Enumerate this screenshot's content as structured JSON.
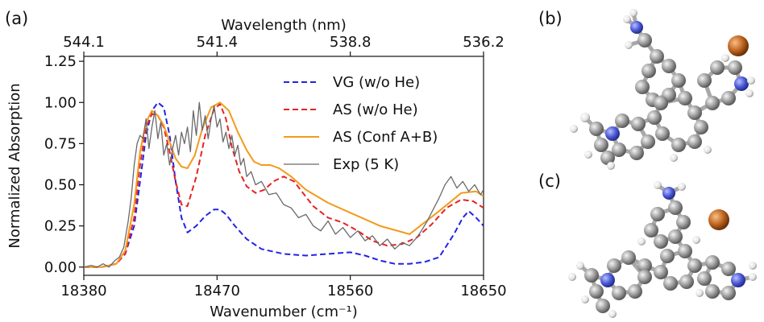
{
  "panels": {
    "a": "(a)",
    "b": "(b)",
    "c": "(c)"
  },
  "chart_data": {
    "type": "line",
    "xlabel": "Wavenumber (cm⁻¹)",
    "ylabel": "Normalized Absorption",
    "top_xlabel": "Wavelength (nm)",
    "xlim": [
      18380,
      18650
    ],
    "ylim": [
      -0.05,
      1.28
    ],
    "xticks": [
      18380,
      18470,
      18560,
      18650
    ],
    "xtick_labels": [
      "18380",
      "18470",
      "18560",
      "18650"
    ],
    "yticks": [
      0.0,
      0.25,
      0.5,
      0.75,
      1.0,
      1.25
    ],
    "ytick_labels": [
      "0.00",
      "0.25",
      "0.50",
      "0.75",
      "1.00",
      "1.25"
    ],
    "top_xticks": [
      18380,
      18470,
      18560,
      18650
    ],
    "top_xtick_labels": [
      "544.1",
      "541.4",
      "538.8",
      "536.2"
    ],
    "legend_position": "top-right",
    "grid": false,
    "series": [
      {
        "name": "VG (w/o He)",
        "color": "#2323e6",
        "dash": "dashed",
        "x": [
          18380,
          18392,
          18402,
          18408,
          18414,
          18418,
          18422,
          18426,
          18430,
          18434,
          18438,
          18442,
          18446,
          18450,
          18456,
          18462,
          18468,
          18472,
          18476,
          18482,
          18490,
          18500,
          18515,
          18530,
          18545,
          18560,
          18570,
          18580,
          18590,
          18600,
          18610,
          18620,
          18630,
          18636,
          18640,
          18645,
          18650
        ],
        "y": [
          0.0,
          0.0,
          0.02,
          0.08,
          0.25,
          0.52,
          0.8,
          0.95,
          1.0,
          0.97,
          0.8,
          0.52,
          0.3,
          0.21,
          0.25,
          0.31,
          0.35,
          0.35,
          0.32,
          0.25,
          0.17,
          0.11,
          0.08,
          0.07,
          0.08,
          0.09,
          0.07,
          0.04,
          0.02,
          0.02,
          0.03,
          0.06,
          0.2,
          0.3,
          0.34,
          0.3,
          0.25
        ]
      },
      {
        "name": "AS (w/o He)",
        "color": "#e62323",
        "dash": "dashed",
        "x": [
          18380,
          18392,
          18402,
          18408,
          18414,
          18418,
          18422,
          18426,
          18430,
          18434,
          18438,
          18442,
          18446,
          18450,
          18456,
          18462,
          18468,
          18472,
          18476,
          18480,
          18485,
          18490,
          18496,
          18502,
          18508,
          18515,
          18522,
          18528,
          18535,
          18545,
          18555,
          18565,
          18575,
          18585,
          18595,
          18605,
          18615,
          18625,
          18635,
          18643,
          18650
        ],
        "y": [
          0.0,
          0.0,
          0.02,
          0.08,
          0.3,
          0.62,
          0.85,
          0.93,
          0.92,
          0.85,
          0.7,
          0.52,
          0.38,
          0.37,
          0.55,
          0.8,
          0.96,
          0.99,
          0.9,
          0.73,
          0.58,
          0.49,
          0.45,
          0.47,
          0.52,
          0.55,
          0.52,
          0.45,
          0.37,
          0.3,
          0.27,
          0.22,
          0.16,
          0.13,
          0.14,
          0.18,
          0.26,
          0.36,
          0.41,
          0.4,
          0.36
        ]
      },
      {
        "name": "AS (Conf A+B)",
        "color": "#f39a1c",
        "dash": "solid",
        "x": [
          18380,
          18392,
          18402,
          18408,
          18414,
          18418,
          18422,
          18426,
          18430,
          18434,
          18438,
          18442,
          18446,
          18450,
          18455,
          18460,
          18466,
          18472,
          18478,
          18484,
          18490,
          18495,
          18500,
          18506,
          18512,
          18520,
          18530,
          18545,
          18560,
          18580,
          18600,
          18620,
          18635,
          18645,
          18650
        ],
        "y": [
          0.0,
          0.0,
          0.02,
          0.1,
          0.38,
          0.7,
          0.88,
          0.95,
          0.92,
          0.86,
          0.76,
          0.66,
          0.61,
          0.6,
          0.68,
          0.84,
          0.97,
          1.0,
          0.95,
          0.82,
          0.71,
          0.64,
          0.62,
          0.62,
          0.6,
          0.55,
          0.47,
          0.39,
          0.33,
          0.25,
          0.2,
          0.34,
          0.45,
          0.46,
          0.43
        ]
      },
      {
        "name": "Exp (5 K)",
        "color": "#6a6a6a",
        "dash": "solid",
        "x": [
          18380,
          18385,
          18389,
          18393,
          18397,
          18401,
          18404,
          18407,
          18410,
          18412,
          18414,
          18416,
          18418,
          18420,
          18422,
          18424,
          18426,
          18428,
          18430,
          18432,
          18434,
          18436,
          18438,
          18440,
          18442,
          18444,
          18446,
          18448,
          18450,
          18452,
          18454,
          18456,
          18458,
          18460,
          18462,
          18464,
          18466,
          18468,
          18470,
          18472,
          18474,
          18476,
          18478,
          18480,
          18482,
          18484,
          18486,
          18488,
          18490,
          18493,
          18496,
          18500,
          18505,
          18510,
          18515,
          18520,
          18525,
          18530,
          18535,
          18540,
          18545,
          18550,
          18555,
          18560,
          18565,
          18570,
          18575,
          18580,
          18585,
          18590,
          18595,
          18600,
          18605,
          18608,
          18612,
          18616,
          18620,
          18624,
          18628,
          18632,
          18636,
          18640,
          18644,
          18648,
          18650
        ],
        "y": [
          0.0,
          0.01,
          0.0,
          0.02,
          0.0,
          0.04,
          0.06,
          0.12,
          0.28,
          0.42,
          0.62,
          0.75,
          0.8,
          0.78,
          0.9,
          0.72,
          0.85,
          0.95,
          0.78,
          0.88,
          0.68,
          0.75,
          0.62,
          0.72,
          0.8,
          0.68,
          0.82,
          0.75,
          0.85,
          0.7,
          0.95,
          0.8,
          1.0,
          0.83,
          0.92,
          0.78,
          0.9,
          0.98,
          0.85,
          0.9,
          0.76,
          0.82,
          0.72,
          0.8,
          0.68,
          0.74,
          0.62,
          0.66,
          0.55,
          0.58,
          0.5,
          0.52,
          0.44,
          0.45,
          0.38,
          0.36,
          0.3,
          0.32,
          0.25,
          0.22,
          0.28,
          0.2,
          0.24,
          0.18,
          0.22,
          0.16,
          0.19,
          0.13,
          0.17,
          0.11,
          0.15,
          0.13,
          0.18,
          0.22,
          0.28,
          0.35,
          0.42,
          0.5,
          0.55,
          0.48,
          0.52,
          0.46,
          0.5,
          0.44,
          0.47
        ]
      }
    ]
  },
  "molecule_b": {
    "colors": {
      "carbon": "#9a9a9a",
      "hydrogen": "#e8e8e8",
      "nitrogen": "#4a58d6",
      "helium_ion": "#c46a24"
    }
  },
  "molecule_c": {
    "colors": {
      "carbon": "#9a9a9a",
      "hydrogen": "#e8e8e8",
      "nitrogen": "#4a58d6",
      "helium_ion": "#c46a24"
    }
  }
}
